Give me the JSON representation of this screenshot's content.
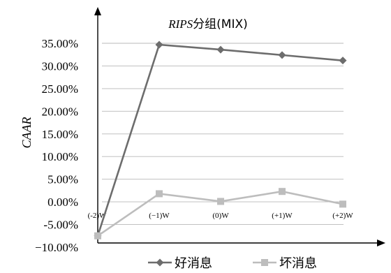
{
  "chart_data": {
    "type": "line",
    "title": "RIPS分组(MIX)",
    "title_italic_part": "RIPS",
    "title_rest": "分组(MIX)",
    "ylabel": "CAAR",
    "xlabel": "",
    "categories": [
      "(-2)W",
      "(−1)W",
      "(0)W",
      "(+1)W",
      "(+2)W"
    ],
    "category_labels_shown": [
      "(-2)W",
      "(−1)W",
      "(0)W",
      "(+1)W",
      "(+2)W"
    ],
    "ylim": [
      -10,
      35
    ],
    "y_tick_values": [
      35,
      30,
      25,
      20,
      15,
      10,
      5,
      0,
      -5,
      -10
    ],
    "y_tick_labels": [
      "35.00%",
      "30.00%",
      "25.00%",
      "20.00%",
      "15.00%",
      "10.00%",
      "5.00%",
      "0.00%",
      "-5.00%",
      "−10.00%"
    ],
    "grid": true,
    "legend_position": "bottom",
    "series": [
      {
        "name": "好消息",
        "values": [
          -7.5,
          34.7,
          33.6,
          32.4,
          31.2
        ],
        "color": "#6d6d6d",
        "marker": "diamond"
      },
      {
        "name": "坏消息",
        "values": [
          -7.5,
          1.8,
          0.1,
          2.3,
          -0.5
        ],
        "color": "#bdbdbd",
        "marker": "square"
      }
    ]
  }
}
